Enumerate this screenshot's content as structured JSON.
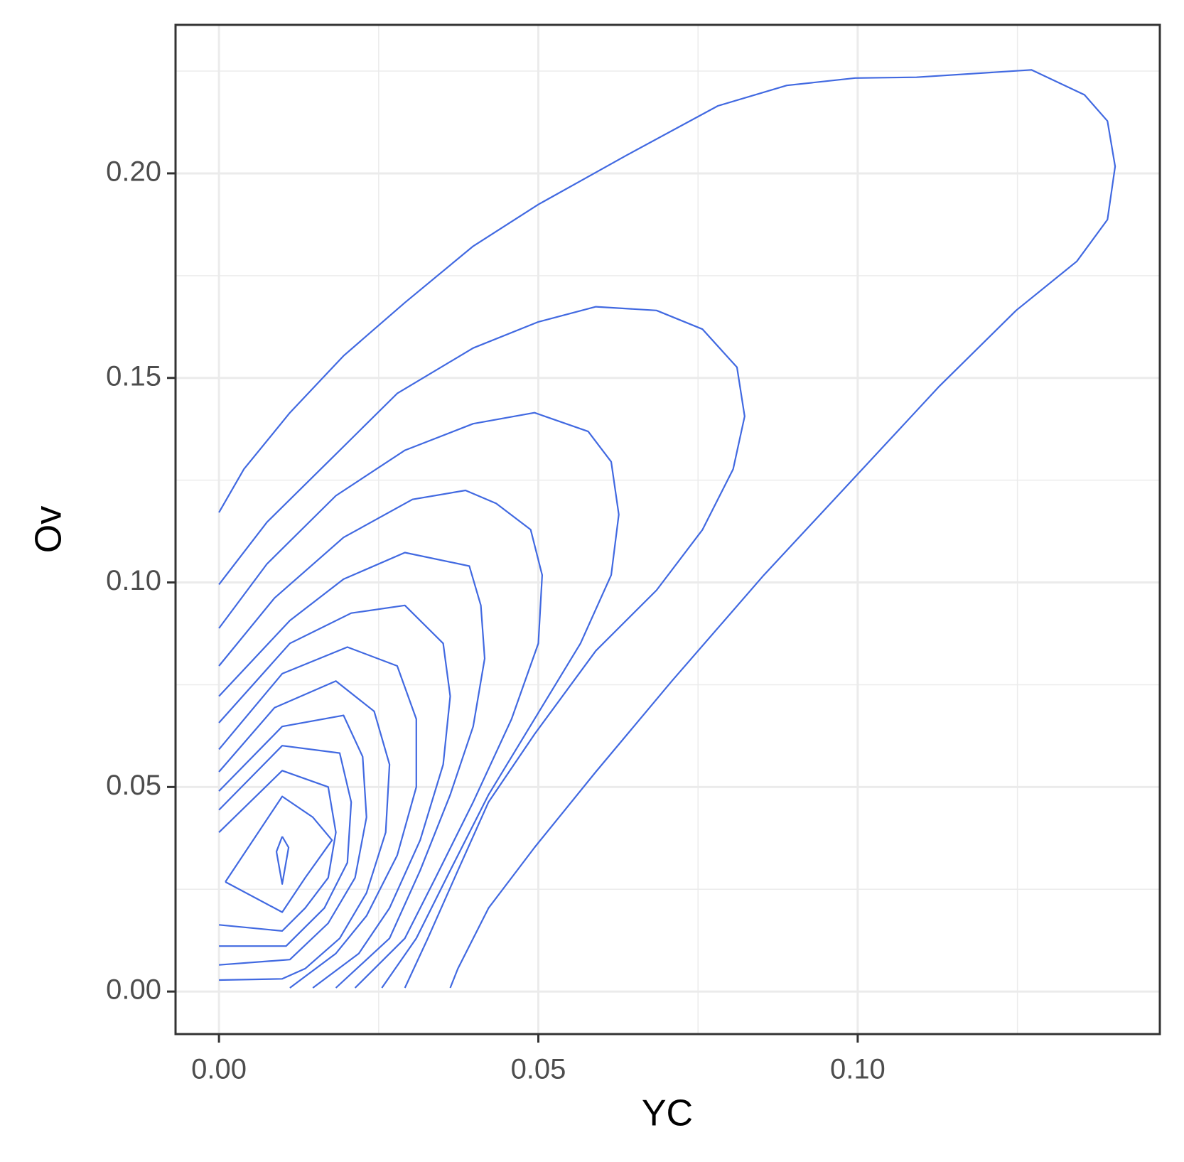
{
  "chart_data": {
    "type": "contour",
    "x_label": "YC",
    "y_label": "Ov",
    "color": "#4169e1",
    "grid": true,
    "xlim": [
      -0.0068,
      0.1473
    ],
    "ylim": [
      -0.0104,
      0.2363
    ],
    "xticks": [
      {
        "value": 0,
        "label": "0.00"
      },
      {
        "value": 0.05,
        "label": "0.05"
      },
      {
        "value": 0.1,
        "label": "0.10"
      }
    ],
    "yticks": [
      {
        "value": 0,
        "label": "0.00"
      },
      {
        "value": 0.05,
        "label": "0.05"
      },
      {
        "value": 0.1,
        "label": "0.10"
      },
      {
        "value": 0.15,
        "label": "0.15"
      },
      {
        "value": 0.2,
        "label": "0.20"
      }
    ],
    "xminor": [
      0.025,
      0.075,
      0.125
    ],
    "yminor": [
      0.025,
      0.075,
      0.125,
      0.175,
      0.225
    ],
    "series": [
      {
        "x": [
          0,
          0.0039,
          0.0111,
          0.0195,
          0.0291,
          0.0398,
          0.05,
          0.0638,
          0.0781,
          0.0889,
          0.0996,
          0.1092,
          0.1272,
          0.1355,
          0.1391,
          0.1403,
          0.1391,
          0.1343,
          0.1248,
          0.1128,
          0.0996,
          0.0853,
          0.0709,
          0.059,
          0.0494,
          0.0422,
          0.0374,
          0.0362
        ],
        "y": [
          0.1171,
          0.1277,
          0.1415,
          0.1554,
          0.1684,
          0.1822,
          0.1924,
          0.2044,
          0.2165,
          0.2215,
          0.2233,
          0.2235,
          0.2253,
          0.2192,
          0.2128,
          0.2017,
          0.1887,
          0.1785,
          0.1665,
          0.148,
          0.1258,
          0.1018,
          0.0759,
          0.0537,
          0.0352,
          0.0204,
          0.0056,
          0.0009
        ]
      },
      {
        "x": [
          0,
          0.0075,
          0.0171,
          0.0279,
          0.0398,
          0.05,
          0.059,
          0.0685,
          0.0757,
          0.0811,
          0.0823,
          0.0805,
          0.0757,
          0.0685,
          0.059,
          0.0494,
          0.0422,
          0.0374,
          0.0327,
          0.0291
        ],
        "y": [
          0.0995,
          0.1147,
          0.1295,
          0.1462,
          0.1573,
          0.1637,
          0.1674,
          0.1665,
          0.1619,
          0.1526,
          0.1406,
          0.1277,
          0.1129,
          0.0981,
          0.0833,
          0.0629,
          0.0463,
          0.0296,
          0.013,
          0.0009
        ]
      },
      {
        "x": [
          0,
          0.0075,
          0.0183,
          0.0291,
          0.0398,
          0.0494,
          0.0578,
          0.0614,
          0.0626,
          0.0614,
          0.0566,
          0.0494,
          0.0422,
          0.0362,
          0.0309,
          0.0255
        ],
        "y": [
          0.0888,
          0.1045,
          0.1212,
          0.1323,
          0.1388,
          0.1415,
          0.1369,
          0.1295,
          0.1166,
          0.1018,
          0.0851,
          0.0666,
          0.0481,
          0.0296,
          0.013,
          0.0009
        ]
      },
      {
        "x": [
          0,
          0.0087,
          0.0195,
          0.0303,
          0.0386,
          0.0434,
          0.0488,
          0.0506,
          0.05,
          0.0458,
          0.0398,
          0.0339,
          0.0291,
          0.0213
        ],
        "y": [
          0.0796,
          0.0962,
          0.111,
          0.1203,
          0.1225,
          0.1193,
          0.1129,
          0.1018,
          0.0851,
          0.0666,
          0.0463,
          0.0278,
          0.013,
          0.0009
        ]
      },
      {
        "x": [
          0,
          0.0111,
          0.0195,
          0.0291,
          0.0392,
          0.041,
          0.0416,
          0.0398,
          0.0362,
          0.0315,
          0.0267,
          0.0183
        ],
        "y": [
          0.0722,
          0.0907,
          0.1008,
          0.1073,
          0.104,
          0.0944,
          0.0814,
          0.0648,
          0.0481,
          0.0296,
          0.013,
          0.0009
        ]
      },
      {
        "x": [
          0,
          0.0111,
          0.0207,
          0.0291,
          0.0351,
          0.0362,
          0.0351,
          0.0315,
          0.0267,
          0.0219,
          0.0147
        ],
        "y": [
          0.0657,
          0.0851,
          0.0925,
          0.0944,
          0.0851,
          0.0722,
          0.0555,
          0.037,
          0.0204,
          0.0093,
          0.0009
        ]
      },
      {
        "x": [
          0,
          0.0099,
          0.0201,
          0.0279,
          0.0309,
          0.0309,
          0.0279,
          0.0231,
          0.0183,
          0.0111
        ],
        "y": [
          0.0592,
          0.0777,
          0.0842,
          0.0796,
          0.0666,
          0.05,
          0.0333,
          0.0185,
          0.0093,
          0.0009
        ]
      },
      {
        "x": [
          0,
          0.0087,
          0.0183,
          0.0243,
          0.0267,
          0.0261,
          0.0231,
          0.0189,
          0.0135,
          0.0099,
          0
        ],
        "y": [
          0.0537,
          0.0694,
          0.0759,
          0.0685,
          0.0555,
          0.0389,
          0.0241,
          0.013,
          0.0056,
          0.0031,
          0.0028
        ]
      },
      {
        "x": [
          0,
          0.0099,
          0.0195,
          0.0225,
          0.0231,
          0.0213,
          0.0171,
          0.0111,
          0
        ],
        "y": [
          0.049,
          0.0648,
          0.0675,
          0.0574,
          0.0426,
          0.0278,
          0.0167,
          0.0078,
          0.0065
        ]
      },
      {
        "x": [
          0,
          0.0099,
          0.0189,
          0.0207,
          0.0201,
          0.0165,
          0.0105,
          0
        ],
        "y": [
          0.0444,
          0.0601,
          0.0583,
          0.0463,
          0.0315,
          0.0204,
          0.0111,
          0.0111
        ]
      },
      {
        "x": [
          0,
          0.0099,
          0.0171,
          0.0183,
          0.0171,
          0.0135,
          0.0099,
          0
        ],
        "y": [
          0.0389,
          0.054,
          0.05,
          0.0389,
          0.0278,
          0.0204,
          0.0148,
          0.0163
        ]
      },
      {
        "x": [
          0.001,
          0.0099,
          0.0147,
          0.0177,
          0.0135,
          0.0099,
          0.001
        ],
        "y": [
          0.0268,
          0.0477,
          0.0426,
          0.037,
          0.0278,
          0.0194,
          0.0268
        ]
      },
      {
        "x": [
          0.0099,
          0.0109,
          0.0099,
          0.009,
          0.0099
        ],
        "y": [
          0.0379,
          0.0352,
          0.0263,
          0.0342,
          0.0379
        ]
      }
    ]
  }
}
